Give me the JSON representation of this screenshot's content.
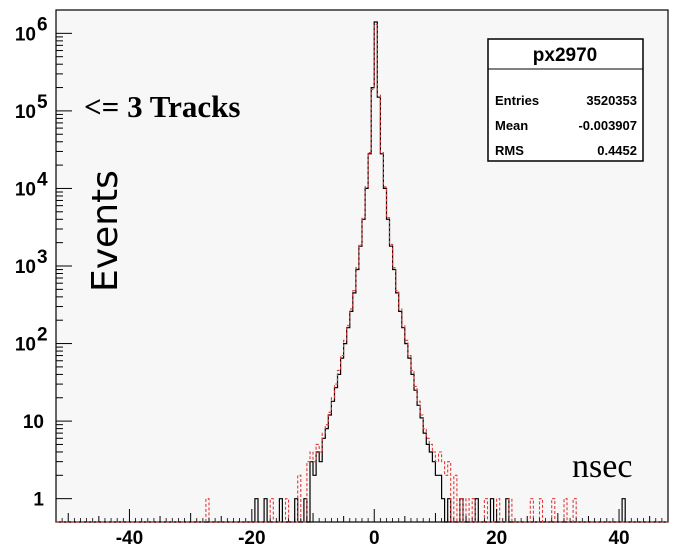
{
  "chart_data": {
    "type": "histogram",
    "title": "",
    "xlabel": "nsec",
    "ylabel": "Events",
    "xlim": [
      -52,
      48
    ],
    "ylim": [
      0.5,
      2000000
    ],
    "yscale": "log",
    "grid": false,
    "x_ticks": [
      -40,
      -20,
      0,
      20,
      40
    ],
    "x_tick_labels": [
      "-40",
      "-20",
      "0",
      "20",
      "40"
    ],
    "y_tick_labels": [
      {
        "value": 1,
        "base": "1",
        "exp": ""
      },
      {
        "value": 10,
        "base": "10",
        "exp": ""
      },
      {
        "value": 100,
        "base": "10",
        "exp": "2"
      },
      {
        "value": 1000,
        "base": "10",
        "exp": "3"
      },
      {
        "value": 10000,
        "base": "10",
        "exp": "4"
      },
      {
        "value": 100000,
        "base": "10",
        "exp": "5"
      },
      {
        "value": 1000000,
        "base": "10",
        "exp": "6"
      }
    ],
    "annotation": "<= 3 Tracks",
    "stats_box": {
      "title": "px2970",
      "rows": [
        {
          "label": "Entries",
          "value": "3520353"
        },
        {
          "label": "Mean",
          "value": "-0.003907"
        },
        {
          "label": "RMS",
          "value": "0.4452"
        }
      ]
    },
    "series": [
      {
        "style": "solid",
        "color": "#000000",
        "points": [
          [
            -19.5,
            1
          ],
          [
            -18,
            1
          ],
          [
            -15.5,
            1
          ],
          [
            -13,
            1
          ],
          [
            -11.5,
            1
          ],
          [
            -10.5,
            3
          ],
          [
            -10,
            2
          ],
          [
            -9.5,
            4
          ],
          [
            -9,
            3
          ],
          [
            -8.5,
            6
          ],
          [
            -8,
            8
          ],
          [
            -7.5,
            12
          ],
          [
            -7,
            18
          ],
          [
            -6.5,
            27
          ],
          [
            -6,
            40
          ],
          [
            -5.5,
            65
          ],
          [
            -5,
            100
          ],
          [
            -4.5,
            160
          ],
          [
            -4,
            260
          ],
          [
            -3.5,
            450
          ],
          [
            -3,
            900
          ],
          [
            -2.5,
            1800
          ],
          [
            -2,
            4000
          ],
          [
            -1.5,
            10000
          ],
          [
            -1,
            28000
          ],
          [
            -0.5,
            200000
          ],
          [
            0,
            1400000
          ],
          [
            0.5,
            150000
          ],
          [
            1,
            28000
          ],
          [
            1.5,
            10000
          ],
          [
            2,
            4000
          ],
          [
            2.5,
            1800
          ],
          [
            3,
            900
          ],
          [
            3.5,
            450
          ],
          [
            4,
            260
          ],
          [
            4.5,
            160
          ],
          [
            5,
            100
          ],
          [
            5.5,
            65
          ],
          [
            6,
            40
          ],
          [
            6.5,
            25
          ],
          [
            7,
            16
          ],
          [
            7.5,
            11
          ],
          [
            8,
            7
          ],
          [
            8.5,
            5
          ],
          [
            9,
            4
          ],
          [
            9.5,
            3
          ],
          [
            10,
            2
          ],
          [
            10.5,
            2
          ],
          [
            11,
            1
          ],
          [
            12,
            1
          ],
          [
            14,
            1
          ],
          [
            16.5,
            1
          ],
          [
            19,
            1
          ],
          [
            21.5,
            1
          ],
          [
            40.5,
            1
          ]
        ]
      },
      {
        "style": "dashed",
        "color": "#e03a3a",
        "points": [
          [
            -27.5,
            1
          ],
          [
            -17,
            1
          ],
          [
            -14.5,
            1
          ],
          [
            -12.5,
            2
          ],
          [
            -11,
            3
          ],
          [
            -10.5,
            4
          ],
          [
            -10,
            3
          ],
          [
            -9.5,
            5
          ],
          [
            -9,
            4
          ],
          [
            -8.5,
            7
          ],
          [
            -8,
            9
          ],
          [
            -7.5,
            13
          ],
          [
            -7,
            20
          ],
          [
            -6.5,
            30
          ],
          [
            -6,
            45
          ],
          [
            -5.5,
            70
          ],
          [
            -5,
            110
          ],
          [
            -4.5,
            170
          ],
          [
            -4,
            280
          ],
          [
            -3.5,
            480
          ],
          [
            -3,
            950
          ],
          [
            -2.5,
            1900
          ],
          [
            -2,
            4200
          ],
          [
            -1.5,
            10500
          ],
          [
            -1,
            29000
          ],
          [
            -0.5,
            190000
          ],
          [
            0,
            1300000
          ],
          [
            0.5,
            160000
          ],
          [
            1,
            29000
          ],
          [
            1.5,
            10500
          ],
          [
            2,
            4200
          ],
          [
            2.5,
            1900
          ],
          [
            3,
            950
          ],
          [
            3.5,
            480
          ],
          [
            4,
            280
          ],
          [
            4.5,
            170
          ],
          [
            5,
            110
          ],
          [
            5.5,
            70
          ],
          [
            6,
            45
          ],
          [
            6.5,
            28
          ],
          [
            7,
            18
          ],
          [
            7.5,
            12
          ],
          [
            8,
            8
          ],
          [
            8.5,
            6
          ],
          [
            9,
            5
          ],
          [
            9.5,
            4
          ],
          [
            10,
            3
          ],
          [
            10.5,
            4
          ],
          [
            11,
            3
          ],
          [
            11.5,
            2
          ],
          [
            12,
            3
          ],
          [
            13,
            2
          ],
          [
            14,
            1
          ],
          [
            15,
            1
          ],
          [
            16,
            1
          ],
          [
            18,
            1
          ],
          [
            20,
            1
          ],
          [
            22,
            1
          ],
          [
            25.5,
            1
          ],
          [
            27,
            1
          ],
          [
            29,
            1
          ],
          [
            31,
            1
          ],
          [
            32.5,
            1
          ]
        ]
      }
    ]
  }
}
